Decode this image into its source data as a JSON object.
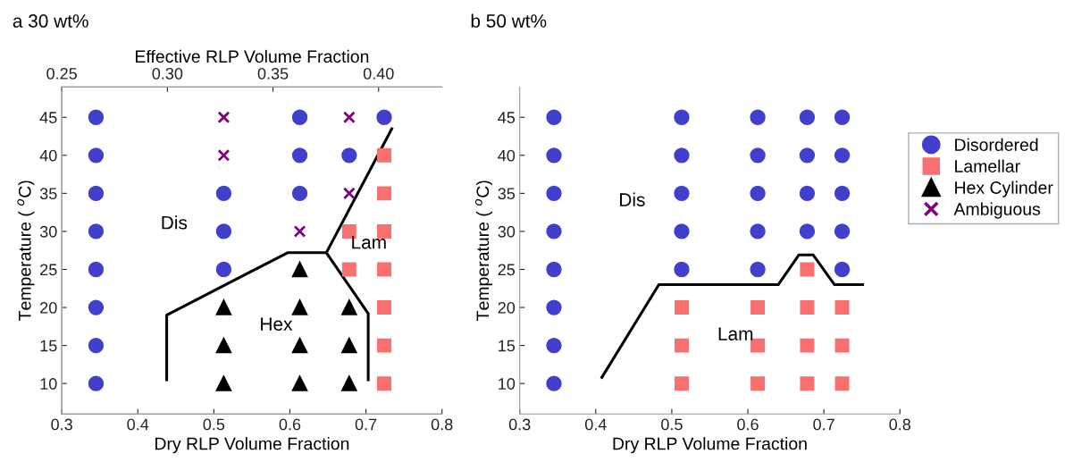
{
  "chart_data": [
    {
      "type": "scatter",
      "title": "a 30 wt%",
      "xlabel": "Dry RLP Volume Fraction",
      "ylabel": "Temperature ( $^{o}$C)",
      "x2label": "Effective RLP Volume Fraction",
      "xlim": [
        0.3,
        0.8
      ],
      "xticks": [
        0.3,
        0.4,
        0.5,
        0.6,
        0.7,
        0.8
      ],
      "ylim": [
        6,
        49
      ],
      "yticks": [
        10,
        15,
        20,
        25,
        30,
        35,
        40,
        45
      ],
      "x2lim": [
        0.25,
        0.43
      ],
      "x2ticks": [
        0.25,
        {
          "value": 0.3,
          "label": "0.30"
        },
        0.35,
        {
          "value": 0.4,
          "label": "0.40"
        }
      ],
      "series": [
        {
          "marker": "circle",
          "color": "#4040cc",
          "x": [
            0.345,
            0.345,
            0.345,
            0.345,
            0.345,
            0.345,
            0.345,
            0.345,
            0.513,
            0.513,
            0.513,
            0.613,
            0.613,
            0.613,
            0.678,
            0.724
          ],
          "values": [
            10,
            15,
            20,
            25,
            30,
            35,
            40,
            45,
            25,
            30,
            35,
            35,
            40,
            45,
            40,
            45
          ]
        },
        {
          "marker": "square",
          "color": "#f87070",
          "x": [
            0.678,
            0.678,
            0.724,
            0.724,
            0.724,
            0.724,
            0.724,
            0.724,
            0.724
          ],
          "values": [
            25,
            30,
            10,
            15,
            20,
            25,
            30,
            35,
            40
          ]
        },
        {
          "marker": "triangle",
          "color": "#000000",
          "x": [
            0.513,
            0.513,
            0.513,
            0.613,
            0.613,
            0.613,
            0.613,
            0.678,
            0.678,
            0.678
          ],
          "values": [
            10,
            15,
            20,
            10,
            15,
            20,
            25,
            10,
            15,
            20
          ]
        },
        {
          "marker": "cross",
          "color": "#800080",
          "x": [
            0.513,
            0.513,
            0.613,
            0.678,
            0.678
          ],
          "values": [
            40,
            45,
            30,
            35,
            45
          ]
        },
        {
          "type": "line",
          "color": "#000000",
          "x": [
            0.438,
            0.438,
            0.597,
            0.648,
            0.703,
            0.703
          ],
          "values": [
            10.5,
            19,
            27.2,
            27.2,
            19.2,
            10.5
          ]
        },
        {
          "type": "line",
          "color": "#000000",
          "x": [
            0.648,
            0.734
          ],
          "values": [
            27.2,
            43.5
          ]
        }
      ],
      "annotations": [
        "Dis",
        "Hex",
        "Lam"
      ]
    },
    {
      "type": "scatter",
      "title": "b 50 wt%",
      "xlabel": "Dry RLP Volume Fraction",
      "ylabel": "Temperature ( $^{o}$C)",
      "xlim": [
        0.3,
        0.8
      ],
      "xticks": [
        0.3,
        0.4,
        0.5,
        0.6,
        0.7,
        0.8
      ],
      "ylim": [
        6,
        49
      ],
      "yticks": [
        10,
        15,
        20,
        25,
        30,
        35,
        40,
        45
      ],
      "legend": "right",
      "series": [
        {
          "name": "Disordered",
          "marker": "circle",
          "color": "#4040cc",
          "x": [
            0.345,
            0.345,
            0.345,
            0.345,
            0.345,
            0.345,
            0.345,
            0.345,
            0.513,
            0.513,
            0.513,
            0.513,
            0.513,
            0.613,
            0.613,
            0.613,
            0.613,
            0.613,
            0.678,
            0.678,
            0.678,
            0.678,
            0.724,
            0.724,
            0.724,
            0.724,
            0.724
          ],
          "values": [
            10,
            15,
            20,
            25,
            30,
            35,
            40,
            45,
            25,
            30,
            35,
            40,
            45,
            25,
            30,
            35,
            40,
            45,
            30,
            35,
            40,
            45,
            25,
            30,
            35,
            40,
            45
          ]
        },
        {
          "name": "Lamellar",
          "marker": "square",
          "color": "#f87070",
          "x": [
            0.513,
            0.513,
            0.513,
            0.613,
            0.613,
            0.613,
            0.678,
            0.678,
            0.678,
            0.678,
            0.724,
            0.724,
            0.724
          ],
          "values": [
            10,
            15,
            20,
            10,
            15,
            20,
            10,
            15,
            20,
            25,
            10,
            15,
            20
          ]
        },
        {
          "name": "Hex Cylinder",
          "marker": "triangle",
          "color": "#000000"
        },
        {
          "name": "Ambiguous",
          "marker": "cross",
          "color": "#800080"
        },
        {
          "type": "line",
          "color": "#000000",
          "x": [
            0.408,
            0.483,
            0.64,
            0.667,
            0.686,
            0.714,
            0.751
          ],
          "values": [
            10.8,
            23,
            23,
            26.9,
            26.9,
            23,
            23
          ]
        }
      ],
      "annotations": [
        "Dis",
        "Lam"
      ]
    }
  ]
}
